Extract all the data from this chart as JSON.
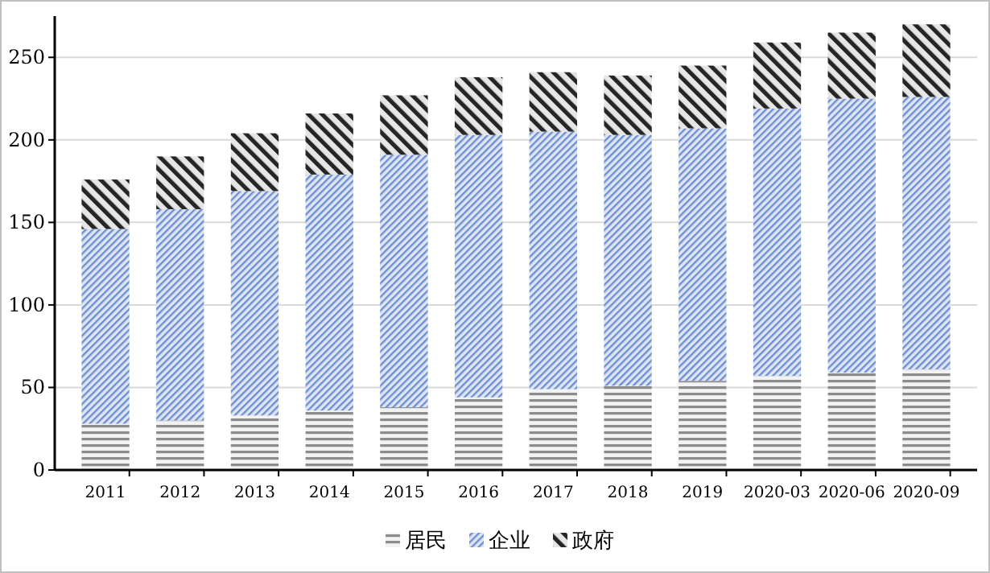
{
  "chart_data": {
    "type": "bar",
    "stacked": true,
    "categories": [
      "2011",
      "2012",
      "2013",
      "2014",
      "2015",
      "2016",
      "2017",
      "2018",
      "2019",
      "2020-03",
      "2020-06",
      "2020-09"
    ],
    "series": [
      {
        "name": "居民",
        "color": "#8c8c8c",
        "values": [
          28,
          30,
          33,
          36,
          38,
          44,
          49,
          51,
          54,
          57,
          59,
          61
        ]
      },
      {
        "name": "企业",
        "color": "#6f8fd0",
        "values": [
          118,
          128,
          136,
          143,
          153,
          159,
          156,
          152,
          153,
          162,
          166,
          165
        ]
      },
      {
        "name": "政府",
        "color": "#262626",
        "values": [
          30,
          32,
          35,
          37,
          36,
          35,
          36,
          36,
          38,
          40,
          40,
          44
        ]
      }
    ],
    "ylim": [
      0,
      275
    ],
    "yticks": [
      0,
      50,
      100,
      150,
      200,
      250
    ],
    "grid": "y",
    "legend": "bottom"
  }
}
